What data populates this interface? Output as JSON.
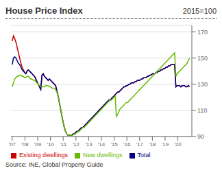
{
  "chart_data": {
    "type": "line",
    "title": "House Price Index",
    "subtitle": "2015=100",
    "annotations": [
      "Source: INE, Global Property Guide"
    ],
    "x": [
      2007.0,
      2007.0973,
      2007.1946,
      2007.292,
      2007.3893,
      2007.4866,
      2007.5839,
      2007.6813,
      2007.7786,
      2007.8759,
      2007.9732,
      2008.0705,
      2008.1679,
      2008.2652,
      2008.3625,
      2008.4598,
      2008.5571,
      2008.6545,
      2008.7518,
      2008.8491,
      2008.9464,
      2009.0438,
      2009.1411,
      2009.2384,
      2009.3357,
      2009.433,
      2009.5304,
      2009.6277,
      2009.725,
      2009.8223,
      2009.9197,
      2010.017,
      2010.1143,
      2010.2116,
      2010.3089,
      2010.4063,
      2010.5036,
      2010.6009,
      2010.6982,
      2010.7955,
      2010.8929,
      2010.9902,
      2011.0875,
      2011.1848,
      2011.2822,
      2011.3795,
      2011.4768,
      2011.5741,
      2011.6714,
      2011.7688,
      2011.8661,
      2011.9634,
      2012.0607,
      2012.158,
      2012.2554,
      2012.3527,
      2012.45,
      2012.5473,
      2012.6447,
      2012.742,
      2012.8393,
      2012.9366,
      2013.0339,
      2013.1313,
      2013.2286,
      2013.3259,
      2013.4232,
      2013.5206,
      2013.6179,
      2013.7152,
      2013.8125,
      2013.9098,
      2014.0072,
      2014.1045,
      2014.2018,
      2014.2991,
      2014.3964,
      2014.4938,
      2014.5911,
      2014.6884,
      2014.7857,
      2014.8831,
      2014.9804,
      2015.0777,
      2015.175,
      2015.2723,
      2015.3697,
      2015.467,
      2015.5643,
      2015.6616,
      2015.759,
      2015.8563,
      2015.9536,
      2016.0509,
      2016.1482,
      2016.2456,
      2016.3429,
      2016.4402,
      2016.5375,
      2016.6348,
      2016.7322,
      2016.8295,
      2016.9268,
      2017.0241,
      2017.1215,
      2017.2188,
      2017.3161,
      2017.4134,
      2017.5107,
      2017.6081,
      2017.7054,
      2017.8027,
      2017.9,
      2017.9973,
      2018.0947,
      2018.192,
      2018.2893,
      2018.3866,
      2018.484,
      2018.5813,
      2018.6786,
      2018.7759,
      2018.8732,
      2018.9706,
      2019.0679,
      2019.1652,
      2019.2625,
      2019.3599,
      2019.4572,
      2019.5545,
      2019.6518,
      2019.7491,
      2019.8465,
      2019.9438,
      2020.0411,
      2020.1384,
      2020.2357,
      2020.3331,
      2020.4304,
      2020.5277,
      2020.625,
      2020.7224,
      2020.8197,
      2020.917
    ],
    "series": [
      {
        "name": "Existing dwellings",
        "color": "#cc0000",
        "values": [
          163,
          167,
          165,
          162,
          158,
          154,
          150,
          146,
          143,
          141,
          139,
          138,
          140,
          141,
          140,
          139,
          138,
          137,
          136,
          134,
          132,
          130,
          128,
          126,
          137,
          138,
          136,
          135,
          134,
          133,
          134,
          133,
          132,
          131,
          130,
          129,
          125,
          121,
          116,
          111,
          106,
          101,
          97,
          94,
          92,
          91,
          91,
          91,
          91,
          92,
          92,
          93,
          94,
          94,
          95,
          96,
          97,
          97,
          98,
          99,
          100,
          101,
          102,
          103,
          104,
          105,
          106,
          107,
          108,
          109,
          110,
          111,
          112,
          113,
          114,
          115,
          116,
          117,
          118,
          118,
          119,
          120,
          121,
          122,
          123,
          124,
          124,
          125,
          126,
          127,
          128,
          128,
          129,
          129,
          130,
          130,
          131,
          131,
          131,
          132,
          132,
          133,
          133,
          133,
          134,
          134,
          135,
          135,
          135,
          136,
          136,
          137,
          137,
          138,
          138,
          138,
          139,
          139,
          140,
          140,
          141,
          141,
          142,
          142,
          143,
          143,
          144,
          144,
          145,
          145,
          145,
          145,
          128,
          129,
          129,
          129,
          128,
          129,
          129,
          129,
          128,
          128,
          129,
          128
        ]
      },
      {
        "name": "Total",
        "color": "#000080",
        "values": [
          145,
          150,
          151,
          150,
          148,
          146,
          145,
          143,
          141,
          140,
          139,
          138,
          140,
          141,
          140,
          139,
          138,
          137,
          136,
          134,
          132,
          130,
          128,
          126,
          137,
          138,
          136,
          135,
          134,
          133,
          134,
          133,
          132,
          131,
          130,
          129,
          125,
          121,
          116,
          111,
          106,
          101,
          97,
          94,
          92,
          91,
          91,
          91,
          91,
          92,
          92,
          93,
          94,
          94,
          95,
          96,
          97,
          97,
          98,
          99,
          100,
          101,
          102,
          103,
          104,
          105,
          106,
          107,
          108,
          109,
          110,
          111,
          112,
          113,
          114,
          115,
          116,
          117,
          118,
          118,
          119,
          120,
          121,
          122,
          123,
          124,
          124,
          125,
          126,
          127,
          128,
          128,
          129,
          129,
          130,
          130,
          131,
          131,
          131,
          132,
          132,
          133,
          133,
          133,
          134,
          134,
          135,
          135,
          135,
          136,
          136,
          137,
          137,
          138,
          138,
          138,
          139,
          139,
          140,
          140,
          141,
          141,
          142,
          142,
          143,
          143,
          144,
          144,
          145,
          145,
          145,
          145,
          128,
          129,
          129,
          129,
          128,
          129,
          129,
          129,
          128,
          128,
          129,
          128
        ]
      },
      {
        "name": "New dwellings",
        "color": "#66bb00",
        "values": [
          128,
          131,
          134,
          135,
          136,
          136,
          137,
          137,
          136,
          136,
          135,
          135,
          136,
          136,
          135,
          134,
          134,
          133,
          133,
          132,
          131,
          130,
          129,
          128,
          128,
          128,
          128,
          129,
          129,
          129,
          128,
          128,
          127,
          127,
          127,
          126,
          124,
          121,
          116,
          111,
          106,
          101,
          97,
          94,
          92,
          91,
          91,
          91,
          91,
          91,
          92,
          92,
          93,
          94,
          94,
          95,
          96,
          97,
          97,
          98,
          99,
          100,
          101,
          102,
          103,
          104,
          105,
          106,
          107,
          108,
          109,
          110,
          111,
          112,
          113,
          114,
          115,
          116,
          117,
          118,
          118,
          119,
          120,
          121,
          105,
          107,
          109,
          111,
          112,
          113,
          114,
          115,
          116,
          116,
          117,
          118,
          119,
          120,
          121,
          122,
          123,
          124,
          125,
          126,
          127,
          128,
          129,
          130,
          131,
          132,
          133,
          134,
          135,
          136,
          137,
          138,
          139,
          140,
          141,
          142,
          143,
          144,
          145,
          146,
          147,
          148,
          149,
          150,
          151,
          152,
          153,
          154,
          136,
          138,
          139,
          140,
          141,
          142,
          143,
          144,
          145,
          146,
          148,
          150
        ]
      }
    ],
    "xlim": [
      2006.9,
      2021.1
    ],
    "xticks": [
      {
        "value": 2007,
        "label": "'07"
      },
      {
        "value": 2008,
        "label": "'08"
      },
      {
        "value": 2009,
        "label": "'09"
      },
      {
        "value": 2010,
        "label": "'10"
      },
      {
        "value": 2011,
        "label": "'11"
      },
      {
        "value": 2012,
        "label": "'12"
      },
      {
        "value": 2013,
        "label": "'13"
      },
      {
        "value": 2014,
        "label": "'14"
      },
      {
        "value": 2015,
        "label": "'15"
      },
      {
        "value": 2016,
        "label": "'16"
      },
      {
        "value": 2017,
        "label": "'17"
      },
      {
        "value": 2018,
        "label": "'18"
      },
      {
        "value": 2019,
        "label": "'19"
      },
      {
        "value": 2020,
        "label": "'20"
      }
    ],
    "ylim": [
      90,
      175
    ],
    "yticks": [
      90,
      110,
      130,
      150,
      170
    ],
    "grid": true,
    "legend": "lower left"
  }
}
